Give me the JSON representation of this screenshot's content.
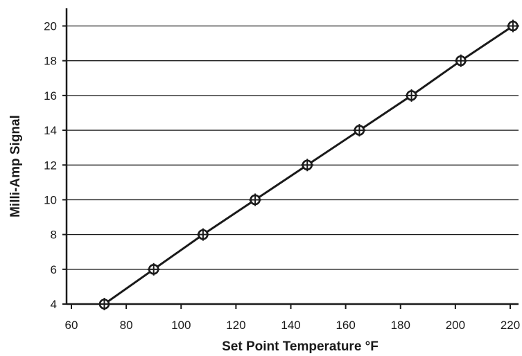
{
  "chart_data": {
    "type": "line",
    "title": "",
    "xlabel": "Set Point Temperature °F",
    "ylabel": "Milli-Amp Signal",
    "xlim": [
      60,
      220
    ],
    "ylim": [
      4,
      20
    ],
    "x_ticks": [
      "60",
      "80",
      "100",
      "120",
      "140",
      "160",
      "180",
      "200",
      "220"
    ],
    "y_ticks": [
      "4",
      "6",
      "8",
      "10",
      "12",
      "14",
      "16",
      "18",
      "20"
    ],
    "grid": "horizontal",
    "legend": "none",
    "series": [
      {
        "x": [
          72,
          90,
          108,
          127,
          146,
          165,
          184,
          202,
          221
        ],
        "y": [
          4,
          6,
          8,
          10,
          12,
          14,
          16,
          18,
          20
        ],
        "color": "#1a1a1a",
        "marker": "open-circle-crosshair"
      }
    ]
  }
}
